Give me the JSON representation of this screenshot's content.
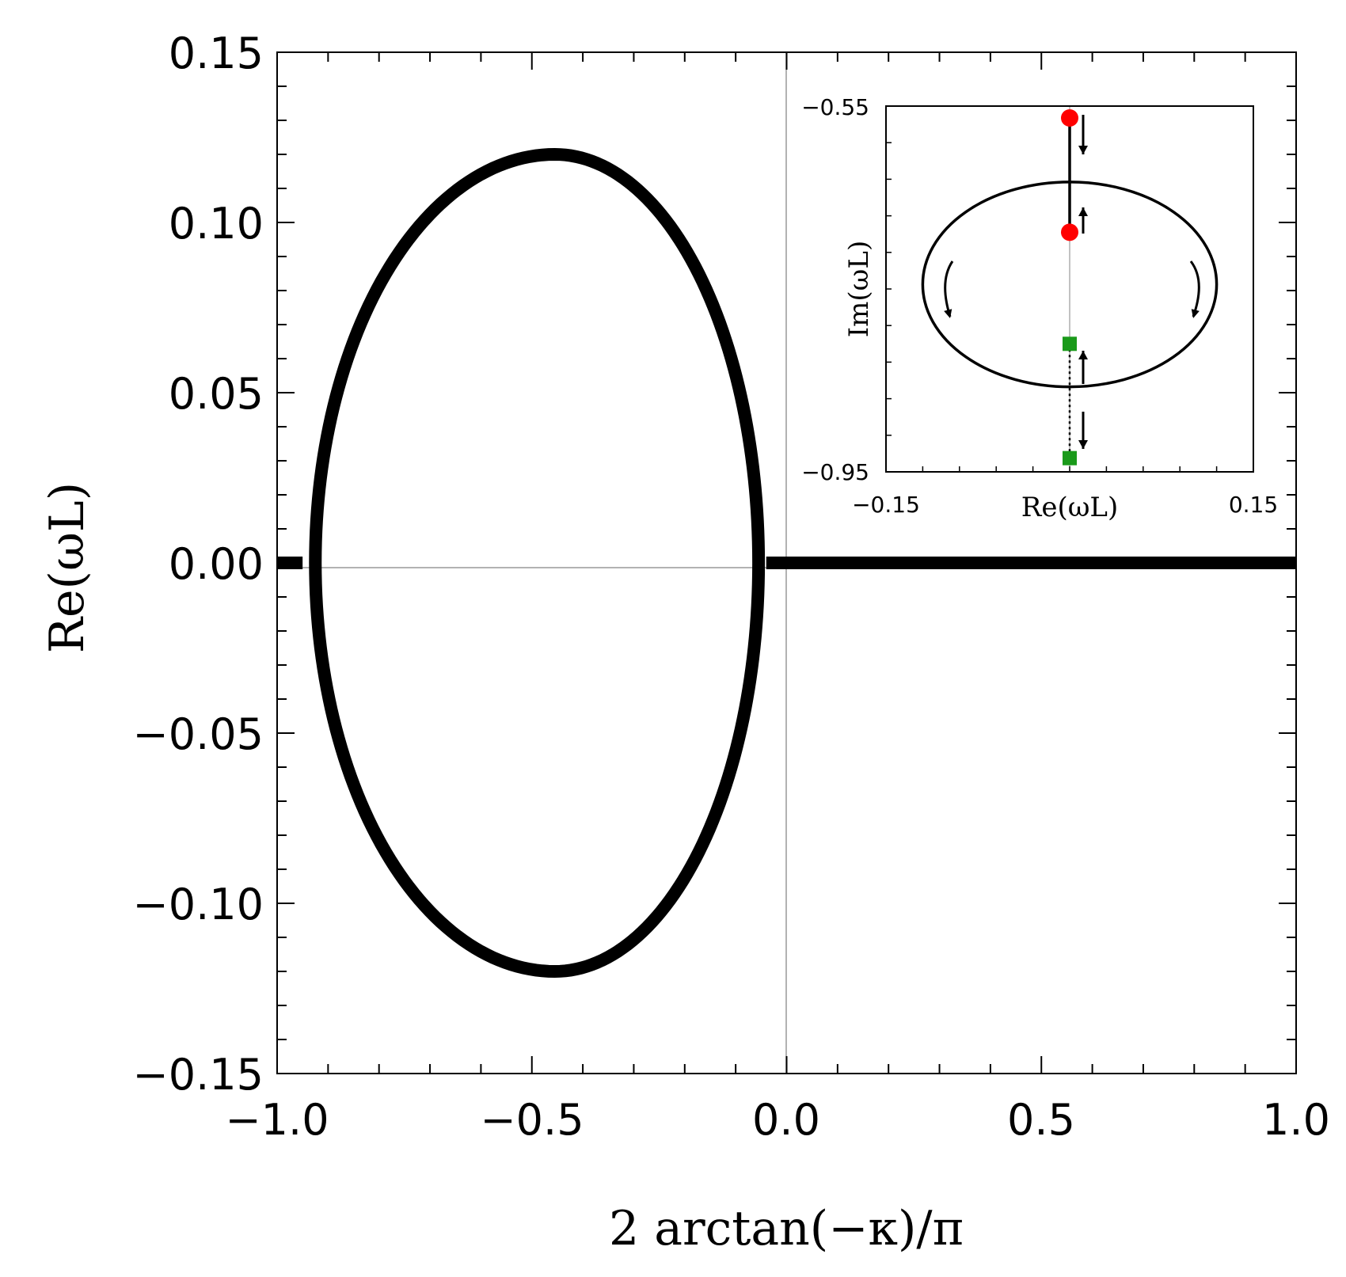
{
  "chart_data": [
    {
      "type": "scatter",
      "title": "",
      "xlabel": "2 arctan(−κ)/π",
      "ylabel": "Re(ωL)",
      "xlim": [
        -1.0,
        1.0
      ],
      "ylim": [
        -0.15,
        0.15
      ],
      "x_ticks": [
        -1.0,
        -0.5,
        0.0,
        0.5,
        1.0
      ],
      "x_tick_labels": [
        "−1.0",
        "−0.5",
        "0.0",
        "0.5",
        "1.0"
      ],
      "y_ticks": [
        0.15,
        0.1,
        0.05,
        0.0,
        -0.05,
        -0.1,
        -0.15
      ],
      "y_tick_labels": [
        "0.15",
        "0.10",
        "0.05",
        "0.00",
        "−0.05",
        "−0.10",
        "−0.15"
      ],
      "grid": false,
      "zero_lines": true,
      "series": [
        {
          "color": "#000000",
          "description_values": {
            "flat_left_x": [
              -1.0,
              -0.95
            ],
            "ellipse_left_x": -0.925,
            "ellipse_right_x": -0.055,
            "ellipse_center_x": -0.455,
            "ellipse_peak_y": 0.12,
            "flat_right_x": [
              -0.04,
              1.0
            ]
          }
        }
      ]
    },
    {
      "type": "scatter",
      "title": "",
      "xlabel": "Re(ωL)",
      "ylabel": "Im(ωL)",
      "xlim": [
        -0.15,
        0.15
      ],
      "ylim": [
        -0.95,
        -0.55
      ],
      "x_tick_labels": [
        "−0.15",
        "0.15"
      ],
      "y_tick_labels": [
        "−0.55",
        "−0.95"
      ],
      "ellipse": {
        "center": [
          0.0,
          -0.745
        ],
        "rx": 0.12,
        "ry": 0.112
      },
      "markers": [
        {
          "shape": "circle",
          "color": "#ff0000",
          "x": 0.0,
          "y": -0.563
        },
        {
          "shape": "circle",
          "color": "#ff0000",
          "x": 0.0,
          "y": -0.688
        },
        {
          "shape": "square",
          "color": "#1a9a1a",
          "x": 0.0,
          "y": -0.81
        },
        {
          "shape": "square",
          "color": "#1a9a1a",
          "x": 0.0,
          "y": -0.935
        }
      ]
    }
  ]
}
